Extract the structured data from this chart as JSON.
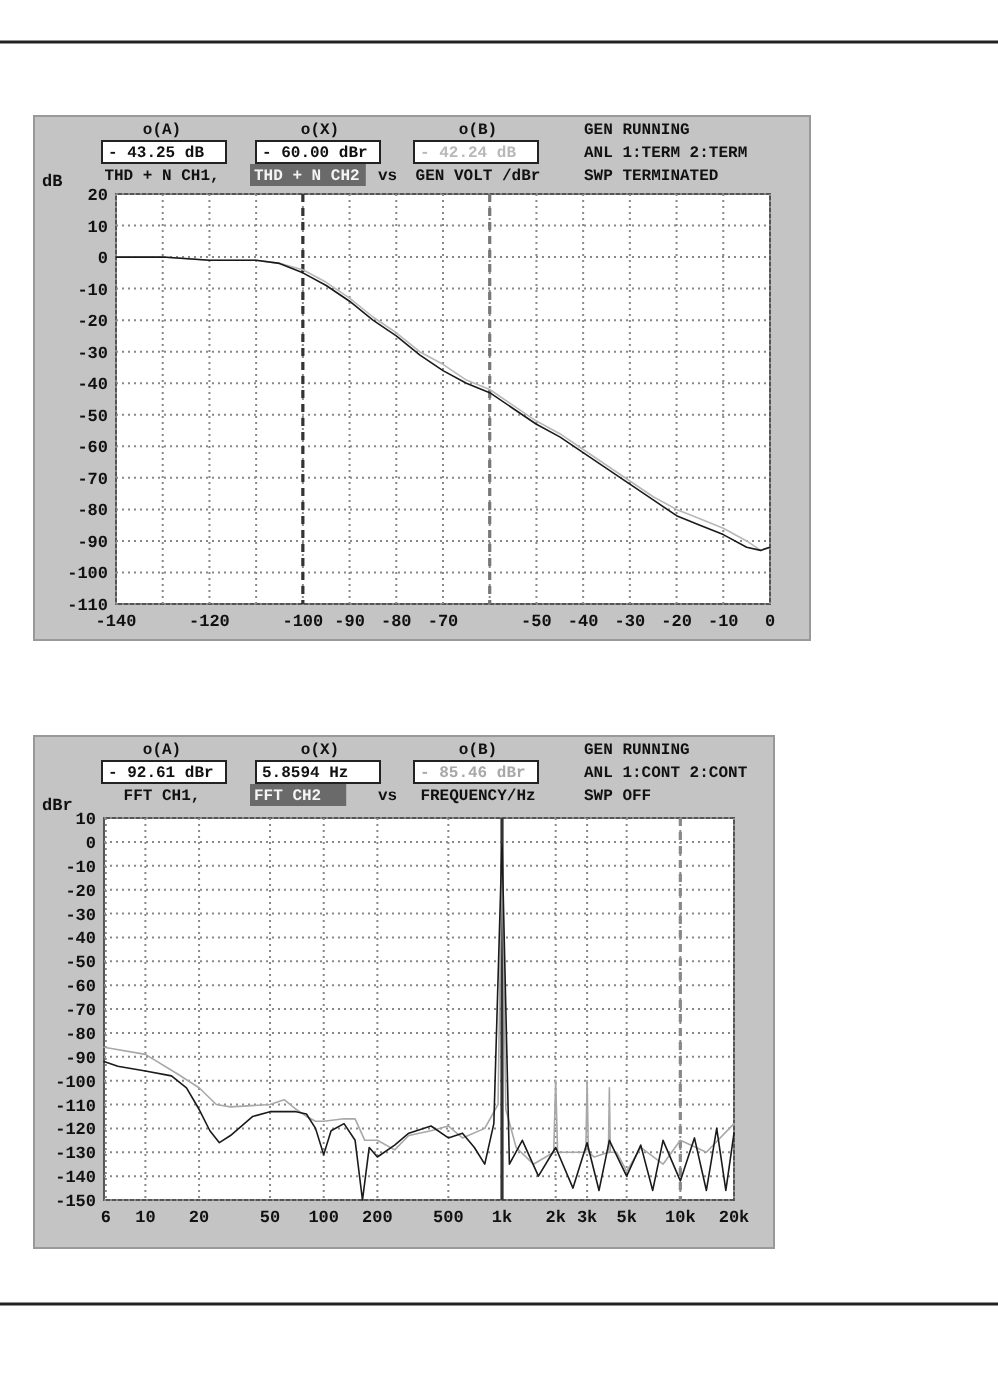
{
  "chart_data": [
    {
      "type": "line",
      "ylabel": "dB",
      "xlim": [
        -140,
        0
      ],
      "ylim": [
        -110,
        20
      ],
      "xticks": [
        -140,
        {
          "value": -130,
          "label": null
        },
        -120,
        {
          "value": -110,
          "label": null
        },
        -100,
        -90,
        -80,
        -70,
        {
          "value": -60,
          "label": null
        },
        -50,
        -40,
        -30,
        -20,
        -10,
        0
      ],
      "yticks": [
        20,
        10,
        0,
        -10,
        -20,
        -30,
        -40,
        -50,
        -60,
        -70,
        -80,
        -90,
        -100,
        -110
      ],
      "grid": true,
      "annotations": [
        "o(A)",
        "- 43.25 dB",
        "THD + N CH1,",
        "o(X)",
        "- 60.00 dBr",
        "THD + N CH2",
        "vs",
        "o(B)",
        "- 42.24 dB",
        "GEN VOLT /dBr",
        "GEN RUNNING",
        "ANL 1:TERM 2:TERM",
        "SWP TERMINATED"
      ],
      "ref_lines": [
        {
          "axis": "x",
          "value": -100,
          "color": "#333333",
          "line_style": "dashed"
        },
        {
          "axis": "x",
          "value": -60,
          "color": "#777777",
          "line_style": "dashed"
        }
      ],
      "series": [
        {
          "color": "#b8b8b8",
          "x": [
            -140,
            -130,
            -120,
            -110,
            -105,
            -100,
            -95,
            -90,
            -85,
            -80,
            -75,
            -70,
            -65,
            -60,
            -55,
            -50,
            -45,
            -40,
            -35,
            -30,
            -25,
            -20,
            -15,
            -10,
            -5,
            -2,
            0
          ],
          "values": [
            0,
            0,
            -1,
            -1,
            -2,
            -4,
            -8,
            -13,
            -19,
            -24,
            -30,
            -34,
            -39,
            -42,
            -47,
            -52,
            -56,
            -61,
            -66,
            -71,
            -76,
            -80,
            -83,
            -86,
            -90,
            -93,
            -92
          ]
        },
        {
          "color": "#1a1a1a",
          "x": [
            -140,
            -130,
            -120,
            -110,
            -105,
            -100,
            -95,
            -90,
            -85,
            -80,
            -75,
            -70,
            -65,
            -60,
            -55,
            -50,
            -45,
            -40,
            -35,
            -30,
            -25,
            -20,
            -15,
            -10,
            -5,
            -2,
            0
          ],
          "values": [
            0,
            0,
            -1,
            -1,
            -2,
            -5,
            -9,
            -14,
            -20,
            -25,
            -31,
            -36,
            -40,
            -43,
            -48,
            -53,
            -57,
            -62,
            -67,
            -72,
            -77,
            -82,
            -85,
            -88,
            -92,
            -93,
            -92
          ]
        }
      ]
    },
    {
      "type": "line",
      "ylabel": "dBr",
      "log": "x",
      "xlim": [
        5.8594,
        20000
      ],
      "ylim": [
        -150,
        10
      ],
      "xticks": [
        6,
        10,
        20,
        50,
        100,
        200,
        500,
        {
          "value": 1000,
          "label": "1k"
        },
        {
          "value": 2000,
          "label": "2k"
        },
        {
          "value": 3000,
          "label": "3k"
        },
        {
          "value": 5000,
          "label": "5k"
        },
        {
          "value": 10000,
          "label": "10k"
        },
        {
          "value": 20000,
          "label": "20k"
        }
      ],
      "yticks": [
        10,
        0,
        -10,
        -20,
        -30,
        -40,
        -50,
        -60,
        -70,
        -80,
        -90,
        -100,
        -110,
        -120,
        -130,
        -140,
        -150
      ],
      "grid": true,
      "annotations": [
        "o(A)",
        "- 92.61 dBr",
        "FFT   CH1,",
        "o(X)",
        "5.8594  Hz",
        "FFT   CH2",
        "vs",
        "o(B)",
        "- 85.46 dBr",
        "FREQUENCY/Hz",
        "GEN RUNNING",
        "ANL 1:CONT 2:CONT",
        "SWP OFF"
      ],
      "ref_lines": [
        {
          "axis": "x",
          "value": 1000,
          "color": "#333333",
          "line_style": "solid"
        },
        {
          "axis": "x",
          "value": 10000,
          "color": "#888888",
          "line_style": "dashed"
        }
      ],
      "series": [
        {
          "color": "#a8a8a8",
          "x": [
            5.8594,
            10,
            15,
            20,
            25,
            30,
            50,
            60,
            70,
            80,
            90,
            100,
            130,
            150,
            170,
            200,
            250,
            300,
            400,
            500,
            600,
            800,
            950,
            1000,
            1050,
            1200,
            1500,
            1950,
            2000,
            2050,
            2200,
            2950,
            3000,
            3050,
            3300,
            3950,
            4000,
            4050,
            4400,
            5000,
            6000,
            8000,
            10000,
            14000,
            20000
          ],
          "values": [
            -86,
            -89,
            -97,
            -103,
            -110,
            -111,
            -110,
            -108,
            -112,
            -115,
            -117,
            -117,
            -116,
            -116,
            -125,
            -125,
            -129,
            -123,
            -121,
            -119,
            -124,
            -120,
            -110,
            0,
            -112,
            -128,
            -135,
            -130,
            -100,
            -130,
            -130,
            -130,
            -100,
            -130,
            -132,
            -130,
            -103,
            -130,
            -130,
            -138,
            -128,
            -135,
            -125,
            -130,
            -118
          ]
        },
        {
          "color": "#1a1a1a",
          "x": [
            5.8594,
            7,
            10,
            14,
            17,
            20,
            23,
            26,
            30,
            40,
            50,
            70,
            80,
            90,
            100,
            110,
            130,
            150,
            165,
            180,
            200,
            250,
            300,
            400,
            500,
            600,
            700,
            800,
            900,
            1000,
            1100,
            1300,
            1600,
            2000,
            2500,
            3000,
            3500,
            4000,
            5000,
            6000,
            7000,
            8000,
            10000,
            12000,
            14000,
            16000,
            18000,
            20000
          ],
          "values": [
            -92,
            -94,
            -96,
            -98,
            -103,
            -112,
            -121,
            -126,
            -123,
            -115,
            -113,
            -113,
            -114,
            -120,
            -131,
            -121,
            -118,
            -125,
            -150,
            -128,
            -132,
            -127,
            -122,
            -119,
            -124,
            -122,
            -128,
            -135,
            -118,
            0,
            -135,
            -125,
            -140,
            -128,
            -145,
            -126,
            -146,
            -125,
            -140,
            -127,
            -146,
            -125,
            -142,
            -124,
            -146,
            -120,
            -146,
            -122
          ]
        }
      ]
    }
  ]
}
